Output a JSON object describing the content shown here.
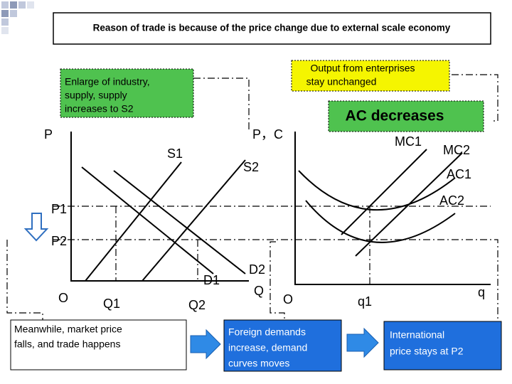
{
  "title": "Reason of trade is because of the price change due to external scale economy",
  "boxes": {
    "industry": [
      "Enlarge of industry,",
      "supply, supply",
      "increases to S2"
    ],
    "output": [
      "Output from enterprises",
      "stay unchanged"
    ],
    "ac": "AC decreases",
    "market": [
      "Meanwhile, market price",
      "falls, and trade happens"
    ],
    "foreign": [
      "Foreign demands",
      "increase, demand",
      "curves moves"
    ],
    "international": [
      "International",
      "price stays at P2"
    ]
  },
  "left_graph": {
    "y_axis": "P",
    "origin": "O",
    "s1": "S1",
    "s2": "S2",
    "d1": "D1",
    "d2": "D2",
    "p1": "P1",
    "p2": "P2",
    "q1": "Q1",
    "q2": "Q2",
    "x_axis": "Q"
  },
  "right_graph": {
    "y_axis": "P，C",
    "origin": "O",
    "mc1": "MC1",
    "mc2": "MC2",
    "ac1": "AC1",
    "ac2": "AC2",
    "q1": "q1",
    "x_axis": "q"
  }
}
